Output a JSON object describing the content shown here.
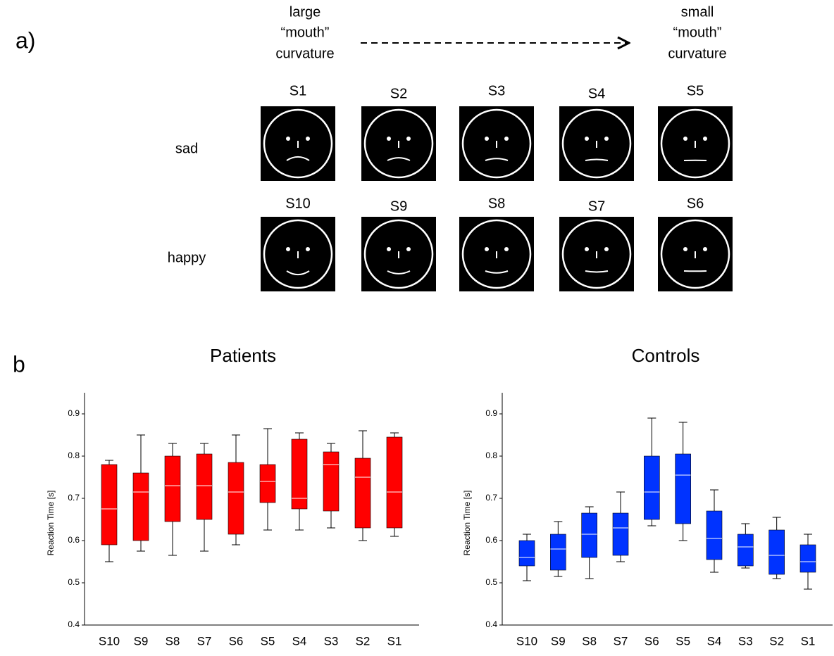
{
  "panel_a": {
    "label": "a)",
    "left_note": [
      "large",
      "“mouth”",
      "curvature"
    ],
    "right_note": [
      "small",
      "“mouth”",
      "curvature"
    ],
    "rows": [
      {
        "label": "sad",
        "stimuli": [
          "S1",
          "S2",
          "S3",
          "S4",
          "S5"
        ]
      },
      {
        "label": "happy",
        "stimuli": [
          "S10",
          "S9",
          "S8",
          "S7",
          "S6"
        ]
      }
    ]
  },
  "panel_b": {
    "label": "b"
  },
  "chart_data": [
    {
      "type": "box",
      "title": "Patients",
      "y_label": "Reaction Time [s]",
      "color": "#ff0000",
      "categories": [
        "S10",
        "S9",
        "S8",
        "S7",
        "S6",
        "S5",
        "S4",
        "S3",
        "S2",
        "S1"
      ],
      "whisker_low": [
        0.55,
        0.575,
        0.565,
        0.575,
        0.59,
        0.625,
        0.625,
        0.63,
        0.6,
        0.61
      ],
      "q1": [
        0.59,
        0.6,
        0.645,
        0.65,
        0.615,
        0.69,
        0.675,
        0.67,
        0.63,
        0.63
      ],
      "median": [
        0.675,
        0.715,
        0.73,
        0.73,
        0.715,
        0.74,
        0.7,
        0.78,
        0.75,
        0.715
      ],
      "q3": [
        0.78,
        0.76,
        0.8,
        0.805,
        0.785,
        0.78,
        0.84,
        0.81,
        0.795,
        0.845
      ],
      "whisker_high": [
        0.79,
        0.85,
        0.83,
        0.83,
        0.85,
        0.865,
        0.855,
        0.83,
        0.86,
        0.855
      ],
      "ylim": [
        0.4,
        0.95
      ],
      "yticks": [
        0.4,
        0.5,
        0.6,
        0.7,
        0.8,
        0.9
      ]
    },
    {
      "type": "box",
      "title": "Controls",
      "y_label": "Reaction Time [s]",
      "color": "#0033ff",
      "categories": [
        "S10",
        "S9",
        "S8",
        "S7",
        "S6",
        "S5",
        "S4",
        "S3",
        "S2",
        "S1"
      ],
      "whisker_low": [
        0.505,
        0.515,
        0.51,
        0.55,
        0.635,
        0.6,
        0.525,
        0.535,
        0.51,
        0.485
      ],
      "q1": [
        0.54,
        0.53,
        0.56,
        0.565,
        0.65,
        0.64,
        0.555,
        0.54,
        0.52,
        0.525
      ],
      "median": [
        0.56,
        0.58,
        0.615,
        0.63,
        0.715,
        0.755,
        0.605,
        0.585,
        0.565,
        0.55
      ],
      "q3": [
        0.6,
        0.615,
        0.665,
        0.665,
        0.8,
        0.805,
        0.67,
        0.615,
        0.625,
        0.59
      ],
      "whisker_high": [
        0.615,
        0.645,
        0.68,
        0.715,
        0.89,
        0.88,
        0.72,
        0.64,
        0.655,
        0.615
      ],
      "ylim": [
        0.4,
        0.95
      ],
      "yticks": [
        0.4,
        0.5,
        0.6,
        0.7,
        0.8,
        0.9
      ]
    }
  ]
}
